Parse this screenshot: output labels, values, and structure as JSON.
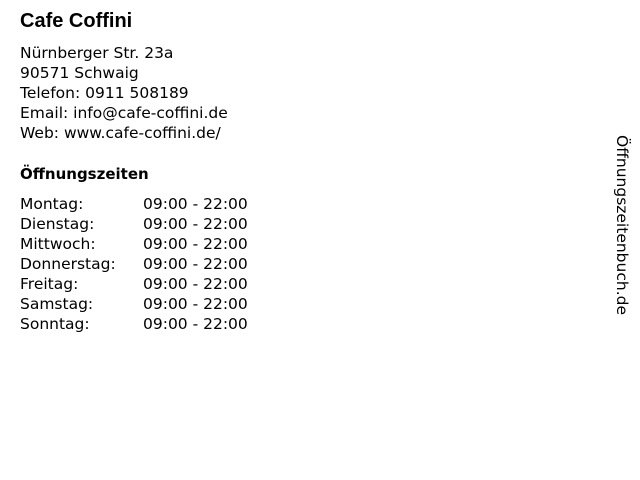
{
  "business": {
    "name": "Cafe Coffini",
    "address_lines": [
      "Nürnberger Str. 23a",
      "90571 Schwaig",
      "Telefon: 0911 508189",
      "Email: info@cafe-coffini.de",
      "Web: www.cafe-coffini.de/"
    ]
  },
  "hours": {
    "heading": "Öffnungszeiten",
    "rows": [
      {
        "day": "Montag:",
        "time": "09:00 - 22:00"
      },
      {
        "day": "Dienstag:",
        "time": "09:00 - 22:00"
      },
      {
        "day": "Mittwoch:",
        "time": "09:00 - 22:00"
      },
      {
        "day": "Donnerstag:",
        "time": "09:00 - 22:00"
      },
      {
        "day": "Freitag:",
        "time": "09:00 - 22:00"
      },
      {
        "day": "Samstag:",
        "time": "09:00 - 22:00"
      },
      {
        "day": "Sonntag:",
        "time": "09:00 - 22:00"
      }
    ]
  },
  "watermark": "Öffnungszeitenbuch.de"
}
